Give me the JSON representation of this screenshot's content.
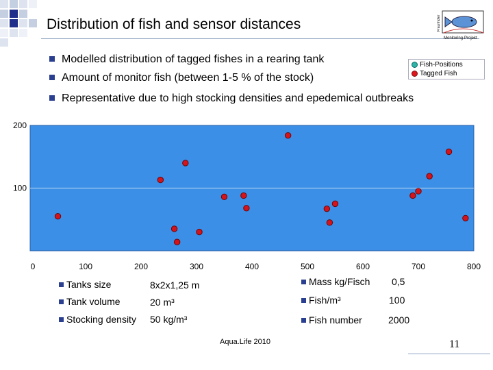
{
  "title": "Distribution of fish and sensor distances",
  "logo": {
    "vertical_text": "Fraunhofer",
    "caption": "Monitoring-Projekt"
  },
  "bullets": [
    "Modelled distribution of tagged fishes in a rearing tank",
    "Amount of monitor fish (between 1-5 % of the stock)",
    "Representative due to high stocking densities and epedemical outbreaks"
  ],
  "legend": [
    {
      "label": "Fish-Positions",
      "color": "#2fb3a8"
    },
    {
      "label": "Tagged Fish",
      "color": "#e0161e"
    }
  ],
  "colors": {
    "plot_bg": "#3b8fe6",
    "grid": "#c8def5",
    "point": "#d4141c",
    "bullet": "#2a3f8f"
  },
  "chart_data": {
    "type": "scatter",
    "title": "",
    "xlabel": "",
    "ylabel": "",
    "xlim": [
      0,
      800
    ],
    "ylim": [
      0,
      200
    ],
    "x_ticks": [
      "0",
      "100",
      "200",
      "300",
      "400",
      "500",
      "600",
      "700",
      "800"
    ],
    "y_ticks": [
      "100",
      "200"
    ],
    "grid": true,
    "series": [
      {
        "points": [
          [
            50,
            55
          ],
          [
            235,
            113
          ],
          [
            280,
            140
          ],
          [
            260,
            35
          ],
          [
            265,
            14
          ],
          [
            305,
            30
          ],
          [
            350,
            86
          ],
          [
            385,
            88
          ],
          [
            390,
            68
          ],
          [
            465,
            184
          ],
          [
            535,
            67
          ],
          [
            540,
            45
          ],
          [
            550,
            75
          ],
          [
            690,
            88
          ],
          [
            700,
            95
          ],
          [
            720,
            119
          ],
          [
            755,
            158
          ],
          [
            785,
            52
          ]
        ]
      }
    ]
  },
  "info_left": [
    {
      "label": "Tanks size",
      "value": "8x2x1,25 m"
    },
    {
      "label": "Tank volume",
      "value": "20 m³"
    },
    {
      "label": "Stocking density",
      "value": "50 kg/m³"
    }
  ],
  "info_right": [
    {
      "label": "Mass kg/Fisch",
      "value": "0,5"
    },
    {
      "label": "Fish/m³",
      "value": "100"
    },
    {
      "label": "Fish number",
      "value": "2000"
    }
  ],
  "footer": "Aqua.Life 2010",
  "page_number": "11"
}
